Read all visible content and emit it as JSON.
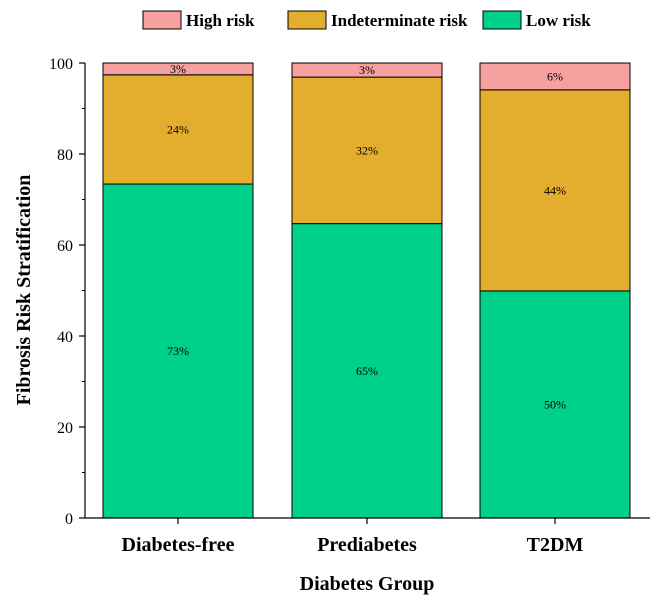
{
  "chart_data": {
    "type": "bar",
    "stacked": true,
    "categories": [
      "Diabetes-free",
      "Prediabetes",
      "T2DM"
    ],
    "series": [
      {
        "name": "Low risk",
        "values": [
          73.4,
          64.7,
          49.9
        ],
        "labels": [
          "73%",
          "65%",
          "50%"
        ],
        "color": "#00d18a"
      },
      {
        "name": "Indeterminate risk",
        "values": [
          24.0,
          32.2,
          44.2
        ],
        "labels": [
          "24%",
          "32%",
          "44%"
        ],
        "color": "#e3ad2e"
      },
      {
        "name": "High risk",
        "values": [
          2.6,
          3.1,
          5.9
        ],
        "labels": [
          "3%",
          "3%",
          "6%"
        ],
        "color": "#f7a0a0"
      }
    ],
    "legend_order": [
      "High risk",
      "Indeterminate risk",
      "Low risk"
    ],
    "legend_position": "top",
    "xlabel": "Diabetes Group",
    "ylabel": "Fibrosis Risk Stratification",
    "ylim": [
      0,
      100
    ],
    "yticks": [
      0,
      20,
      40,
      60,
      80,
      100
    ],
    "grid": false
  }
}
